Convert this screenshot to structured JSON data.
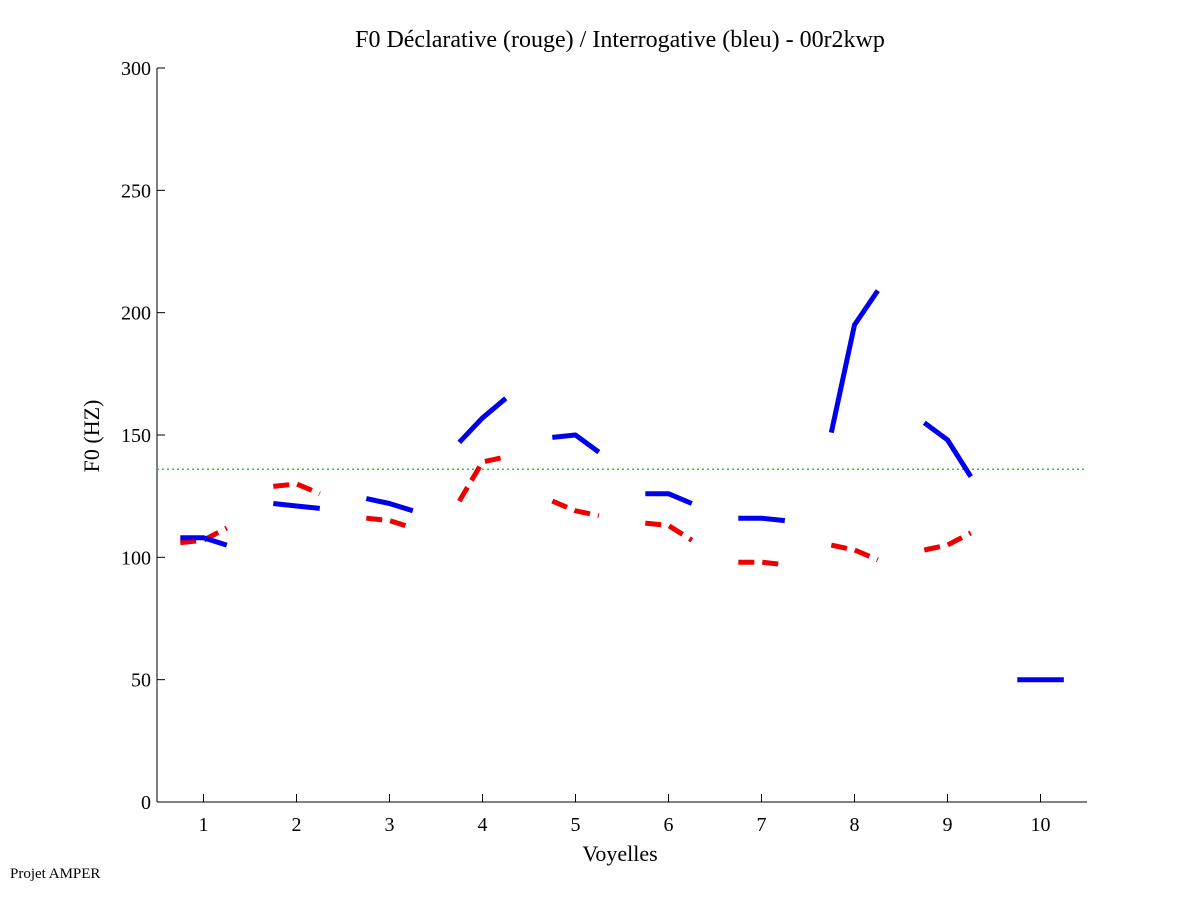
{
  "footer": "Projet AMPER",
  "chart_data": {
    "type": "line",
    "title": "F0 Déclarative (rouge) / Interrogative (bleu) - 00r2kwp",
    "xlabel": "Voyelles",
    "ylabel": "F0 (HZ)",
    "xlim": [
      0.5,
      10.5
    ],
    "ylim": [
      0,
      300
    ],
    "xticks": [
      "1",
      "2",
      "3",
      "4",
      "5",
      "6",
      "7",
      "8",
      "9",
      "10"
    ],
    "yticks": [
      "0",
      "50",
      "100",
      "150",
      "200",
      "250",
      "300"
    ],
    "grid": false,
    "reference_line": {
      "y": 136,
      "color": "#00cc00",
      "style": "dotted"
    },
    "series": [
      {
        "name": "Déclarative (rouge)",
        "color": "#ee0000",
        "style": "dashed",
        "segments": [
          {
            "voyelle": 1,
            "x": [
              0.75,
              1.0,
              1.25
            ],
            "y": [
              106,
              107,
              112
            ]
          },
          {
            "voyelle": 2,
            "x": [
              1.75,
              2.0,
              2.25
            ],
            "y": [
              129,
              130,
              126
            ]
          },
          {
            "voyelle": 3,
            "x": [
              2.75,
              3.0,
              3.25
            ],
            "y": [
              116,
              115,
              112
            ]
          },
          {
            "voyelle": 4,
            "x": [
              3.75,
              4.0,
              4.25
            ],
            "y": [
              123,
              139,
              141
            ]
          },
          {
            "voyelle": 5,
            "x": [
              4.75,
              5.0,
              5.25
            ],
            "y": [
              123,
              119,
              117
            ]
          },
          {
            "voyelle": 6,
            "x": [
              5.75,
              6.0,
              6.25
            ],
            "y": [
              114,
              113,
              107
            ]
          },
          {
            "voyelle": 7,
            "x": [
              6.75,
              7.0,
              7.25
            ],
            "y": [
              98,
              98,
              97
            ]
          },
          {
            "voyelle": 8,
            "x": [
              7.75,
              8.0,
              8.25
            ],
            "y": [
              105,
              103,
              99
            ]
          },
          {
            "voyelle": 9,
            "x": [
              8.75,
              9.0,
              9.25
            ],
            "y": [
              103,
              105,
              110
            ]
          }
        ]
      },
      {
        "name": "Interrogative (bleu)",
        "color": "#0000ee",
        "style": "solid",
        "segments": [
          {
            "voyelle": 1,
            "x": [
              0.75,
              1.0,
              1.25
            ],
            "y": [
              108,
              108,
              105
            ]
          },
          {
            "voyelle": 2,
            "x": [
              1.75,
              2.0,
              2.25
            ],
            "y": [
              122,
              121,
              120
            ]
          },
          {
            "voyelle": 3,
            "x": [
              2.75,
              3.0,
              3.25
            ],
            "y": [
              124,
              122,
              119
            ]
          },
          {
            "voyelle": 4,
            "x": [
              3.75,
              4.0,
              4.25
            ],
            "y": [
              147,
              157,
              165
            ]
          },
          {
            "voyelle": 5,
            "x": [
              4.75,
              5.0,
              5.25
            ],
            "y": [
              149,
              150,
              143
            ]
          },
          {
            "voyelle": 6,
            "x": [
              5.75,
              6.0,
              6.25
            ],
            "y": [
              126,
              126,
              122
            ]
          },
          {
            "voyelle": 7,
            "x": [
              6.75,
              7.0,
              7.25
            ],
            "y": [
              116,
              116,
              115
            ]
          },
          {
            "voyelle": 8,
            "x": [
              7.75,
              8.0,
              8.25
            ],
            "y": [
              151,
              195,
              209
            ]
          },
          {
            "voyelle": 9,
            "x": [
              8.75,
              9.0,
              9.25
            ],
            "y": [
              155,
              148,
              133
            ]
          },
          {
            "voyelle": 10,
            "x": [
              9.75,
              10.0,
              10.25
            ],
            "y": [
              50,
              50,
              50
            ]
          }
        ]
      }
    ]
  }
}
